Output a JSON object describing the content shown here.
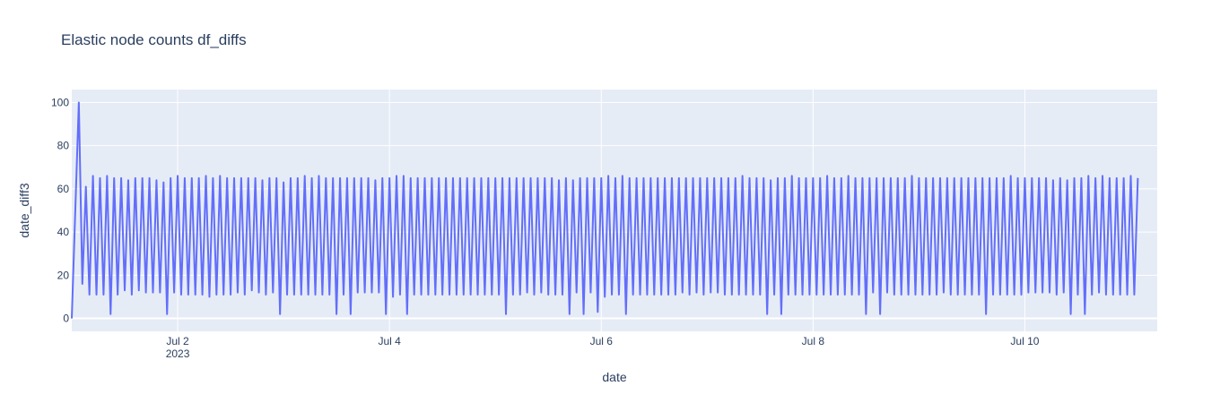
{
  "chart_data": {
    "type": "line",
    "title": "Elastic node counts df_diffs",
    "xlabel": "date",
    "ylabel": "date_diff3",
    "x_range": [
      "2023-07-01T00:00:00",
      "2023-07-11T06:00:00"
    ],
    "ylim": [
      -6,
      106
    ],
    "y_ticks": [
      0,
      20,
      40,
      60,
      80,
      100
    ],
    "x_ticks": [
      {
        "value": "2023-07-02",
        "label": "Jul 2",
        "sublabel": "2023"
      },
      {
        "value": "2023-07-04",
        "label": "Jul 4",
        "sublabel": ""
      },
      {
        "value": "2023-07-06",
        "label": "Jul 6",
        "sublabel": ""
      },
      {
        "value": "2023-07-08",
        "label": "Jul 8",
        "sublabel": ""
      },
      {
        "value": "2023-07-10",
        "label": "Jul 10",
        "sublabel": ""
      }
    ],
    "grid": true,
    "background": "#e5ecf6",
    "series": [
      {
        "color": "#636efa",
        "x_start": "2023-07-01T00:00:00",
        "step_hours": 0.8,
        "values": [
          0,
          50,
          100,
          16,
          61,
          11,
          66,
          11,
          65,
          11,
          66,
          2,
          65,
          11,
          65,
          13,
          64,
          11,
          65,
          13,
          65,
          12,
          65,
          12,
          64,
          12,
          63,
          2,
          65,
          12,
          66,
          11,
          65,
          11,
          65,
          11,
          65,
          11,
          66,
          10,
          65,
          11,
          66,
          11,
          65,
          11,
          65,
          12,
          65,
          11,
          65,
          13,
          65,
          12,
          64,
          11,
          65,
          12,
          65,
          2,
          63,
          11,
          65,
          11,
          65,
          11,
          66,
          11,
          65,
          11,
          66,
          11,
          65,
          11,
          65,
          2,
          65,
          11,
          65,
          2,
          65,
          12,
          65,
          12,
          65,
          12,
          64,
          12,
          65,
          2,
          65,
          10,
          66,
          11,
          66,
          2,
          65,
          11,
          65,
          11,
          65,
          11,
          65,
          11,
          65,
          11,
          65,
          11,
          65,
          11,
          65,
          11,
          65,
          11,
          65,
          11,
          65,
          11,
          65,
          11,
          65,
          11,
          65,
          2,
          65,
          11,
          65,
          11,
          65,
          12,
          65,
          11,
          65,
          12,
          65,
          11,
          65,
          11,
          64,
          11,
          65,
          2,
          64,
          12,
          65,
          2,
          65,
          12,
          65,
          3,
          65,
          10,
          66,
          11,
          65,
          11,
          66,
          2,
          65,
          11,
          65,
          11,
          65,
          11,
          65,
          11,
          65,
          11,
          65,
          11,
          65,
          11,
          65,
          12,
          65,
          11,
          65,
          12,
          65,
          11,
          65,
          12,
          65,
          12,
          65,
          11,
          65,
          11,
          65,
          11,
          66,
          11,
          65,
          11,
          65,
          11,
          65,
          2,
          64,
          11,
          65,
          2,
          65,
          11,
          66,
          11,
          65,
          11,
          65,
          11,
          65,
          11,
          65,
          11,
          66,
          11,
          65,
          11,
          65,
          11,
          66,
          11,
          65,
          11,
          65,
          2,
          65,
          12,
          65,
          2,
          65,
          12,
          65,
          11,
          65,
          11,
          65,
          11,
          66,
          11,
          65,
          11,
          65,
          11,
          65,
          11,
          65,
          12,
          65,
          11,
          65,
          11,
          65,
          11,
          65,
          11,
          65,
          11,
          65,
          2,
          65,
          11,
          65,
          11,
          65,
          11,
          66,
          11,
          65,
          11,
          65,
          12,
          65,
          12,
          65,
          12,
          65,
          12,
          64,
          11,
          65,
          12,
          64,
          2,
          65,
          11,
          65,
          2,
          66,
          11,
          65,
          12,
          66,
          11,
          65,
          11,
          65,
          11,
          65,
          11,
          66,
          11,
          65
        ]
      }
    ]
  }
}
